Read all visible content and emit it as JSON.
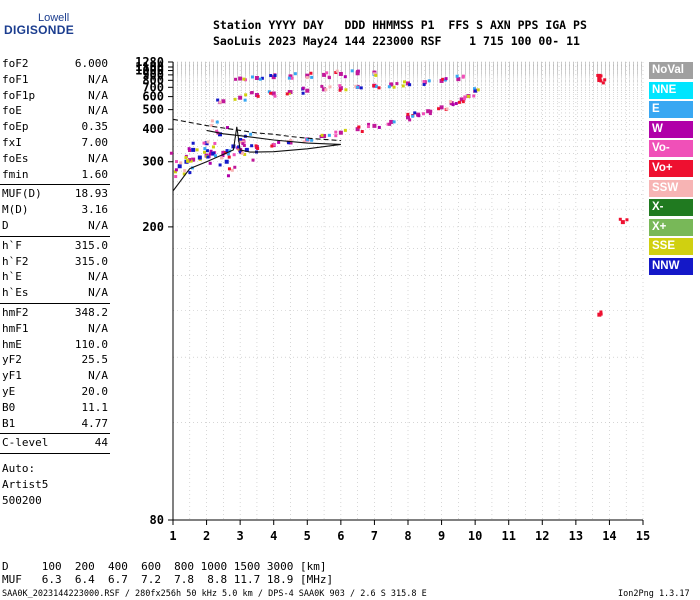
{
  "logo": {
    "top": "Lowell",
    "main": "DIGISONDE"
  },
  "header": {
    "line1": "Station YYYY DAY   DDD HHMMSS P1  FFS S AXN PPS IGA PS",
    "line2": "SaoLuis 2023 May24 144 223000 RSF    1 715 100 00- 11"
  },
  "side_groups": [
    [
      [
        "foF2",
        "6.000"
      ],
      [
        "foF1",
        "N/A"
      ],
      [
        "foF1p",
        "N/A"
      ],
      [
        "foE",
        "N/A"
      ],
      [
        "foEp",
        "0.35"
      ],
      [
        "fxI",
        "7.00"
      ],
      [
        "foEs",
        "N/A"
      ],
      [
        "fmin",
        "1.60"
      ]
    ],
    [
      [
        "MUF(D)",
        "18.93"
      ],
      [
        "M(D)",
        "3.16"
      ],
      [
        "D",
        "N/A"
      ]
    ],
    [
      [
        "h`F",
        "315.0"
      ],
      [
        "h`F2",
        "315.0"
      ],
      [
        "h`E",
        "N/A"
      ],
      [
        "h`Es",
        "N/A"
      ]
    ],
    [
      [
        "hmF2",
        "348.2"
      ],
      [
        "hmF1",
        "N/A"
      ],
      [
        "hmE",
        "110.0"
      ],
      [
        "yF2",
        "25.5"
      ],
      [
        "yF1",
        "N/A"
      ],
      [
        "yE",
        "20.0"
      ],
      [
        "B0",
        "11.1"
      ],
      [
        "B1",
        "4.77"
      ]
    ],
    [
      [
        "C-level",
        "44"
      ]
    ]
  ],
  "auto_notes": [
    "Auto:",
    "Artist5",
    "500200"
  ],
  "legend": [
    {
      "label": "NoVal",
      "color": "#a0a0a0"
    },
    {
      "label": "NNE",
      "color": "#00e5ff"
    },
    {
      "label": "E",
      "color": "#38a7f2"
    },
    {
      "label": "W",
      "color": "#b000a8"
    },
    {
      "label": "Vo-",
      "color": "#f050b8"
    },
    {
      "label": "Vo+",
      "color": "#ee1030"
    },
    {
      "label": "SSW",
      "color": "#f7b4b4"
    },
    {
      "label": "X-",
      "color": "#207a20"
    },
    {
      "label": "X+",
      "color": "#78b858"
    },
    {
      "label": "SSE",
      "color": "#d0d010"
    },
    {
      "label": "NNW",
      "color": "#1418c8"
    }
  ],
  "footer": {
    "d_row": "D     100  200  400  600  800 1000 1500 3000 [km]",
    "muf_row": "MUF   6.3  6.4  6.7  7.2  7.8  8.8 11.7 18.9 [MHz]",
    "file_line": "SAA0K_2023144223000.RSF / 280fx256h 50 kHz 5.0 km / DPS-4 SAA0K 903 / 2.6 S 315.8 E",
    "version": "Ion2Png 1.3.17"
  },
  "chart_data": {
    "type": "scatter",
    "title": "",
    "xlabel": "",
    "ylabel": "",
    "xlim": [
      1,
      15
    ],
    "ylim": [
      80,
      1280
    ],
    "x_ticks": [
      1,
      2,
      3,
      4,
      5,
      6,
      7,
      8,
      9,
      10,
      11,
      12,
      13,
      14,
      15
    ],
    "y_ticks": [
      80,
      200,
      300,
      400,
      500,
      600,
      700,
      800,
      900,
      1000,
      1100,
      1280
    ],
    "scale": "reciprocal height",
    "grid": true,
    "series": [
      {
        "name": "F2 first hop",
        "color": "#c0189a",
        "x": [
          1.6,
          2.0,
          2.5,
          3.0,
          3.5,
          4.0,
          4.5,
          5.0,
          5.5,
          6.0,
          6.5,
          7.0,
          7.5,
          8.0,
          8.3,
          8.6,
          9.0,
          9.3,
          9.6,
          9.8,
          10.0
        ],
        "y": [
          305,
          315,
          322,
          330,
          338,
          344,
          352,
          362,
          374,
          386,
          400,
          414,
          432,
          455,
          470,
          490,
          515,
          545,
          575,
          605,
          660
        ]
      },
      {
        "name": "F2 second hop",
        "color": "#c0189a",
        "x": [
          2.5,
          3.0,
          3.5,
          4.0,
          4.5,
          5.0,
          5.5,
          6.0,
          6.5,
          7.0,
          7.5,
          8.0,
          8.5,
          9.0,
          9.5
        ],
        "y": [
          560,
          590,
          615,
          630,
          645,
          660,
          675,
          690,
          705,
          720,
          738,
          752,
          770,
          790,
          820
        ]
      },
      {
        "name": "F2 third hop",
        "color": "#c0189a",
        "x": [
          3.0,
          3.5,
          4.0,
          4.5,
          5.0,
          5.5,
          6.0,
          6.5,
          7.0
        ],
        "y": [
          830,
          840,
          855,
          870,
          885,
          900,
          920,
          935,
          950
        ]
      },
      {
        "name": "Low-frequency echoes",
        "color": "#1418c8",
        "x": [
          1.2,
          1.4,
          1.6,
          1.8,
          2.0,
          2.2,
          2.4,
          2.6,
          2.8,
          3.0,
          3.2
        ],
        "y": [
          290,
          300,
          330,
          310,
          350,
          320,
          380,
          300,
          340,
          360,
          330
        ]
      },
      {
        "name": "Isolated points",
        "color": "#ee1030",
        "x": [
          13.7,
          13.7,
          13.7,
          13.7,
          14.4
        ],
        "y": [
          880,
          830,
          805,
          138,
          205
        ]
      }
    ],
    "model_curves": [
      {
        "name": "Profile (solid)",
        "style": "solid",
        "x": [
          1.0,
          1.5,
          2.0,
          2.5,
          2.8,
          2.9,
          3.0,
          3.3,
          4.0,
          5.0,
          6.0,
          5.0,
          4.0,
          3.0,
          2.5,
          2.0
        ],
        "y": [
          245,
          285,
          300,
          318,
          330,
          410,
          330,
          324,
          325,
          333,
          346,
          350,
          360,
          375,
          382,
          395
        ]
      },
      {
        "name": "Profile (dashed)",
        "style": "dashed",
        "x": [
          1.0,
          1.5,
          2.0,
          2.5,
          3.0,
          3.5,
          4.0,
          4.5,
          5.0,
          5.5,
          6.0
        ],
        "y": [
          445,
          430,
          415,
          405,
          395,
          385,
          380,
          372,
          366,
          362,
          358
        ]
      }
    ]
  }
}
